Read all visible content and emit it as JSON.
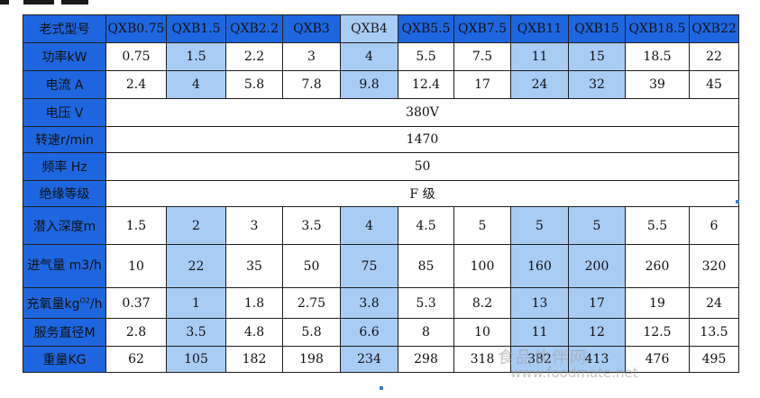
{
  "table": {
    "header": [
      "老式型号",
      "QXB0.75",
      "QXB1.5",
      "QXB2.2",
      "QXB3",
      "QXB4",
      "QXB5.5",
      "QXB7.5",
      "QXB11",
      "QXB15",
      "QXB18.5",
      "QXB22"
    ],
    "rows": [
      {
        "label": "功率kW",
        "values": [
          "0.75",
          "1.5",
          "2.2",
          "3",
          "4",
          "5.5",
          "7.5",
          "11",
          "15",
          "18.5",
          "22"
        ]
      },
      {
        "label": "电流 A",
        "values": [
          "2.4",
          "4",
          "5.8",
          "7.8",
          "9.8",
          "12.4",
          "17",
          "24",
          "32",
          "39",
          "45"
        ]
      },
      {
        "label": "电压 V",
        "merged": "380V"
      },
      {
        "label": "转速r/min",
        "merged": "1470"
      },
      {
        "label": "频率 Hz",
        "merged": "50"
      },
      {
        "label": "绝缘等级",
        "merged": "F 级"
      },
      {
        "label": "潜入深度m",
        "values": [
          "1.5",
          "2",
          "3",
          "3.5",
          "4",
          "4.5",
          "5",
          "5",
          "5",
          "5.5",
          "6"
        ]
      },
      {
        "label": "进气量 m3/h",
        "values": [
          "10",
          "22",
          "35",
          "50",
          "75",
          "85",
          "100",
          "160",
          "200",
          "260",
          "320"
        ]
      },
      {
        "label": "充氧量kg",
        "label_sup": "O2",
        "label_suffix": "/h",
        "values": [
          "0.37",
          "1",
          "1.8",
          "2.75",
          "3.8",
          "5.3",
          "8.2",
          "13",
          "17",
          "19",
          "24"
        ]
      },
      {
        "label": "服务直径M",
        "values": [
          "2.8",
          "3.5",
          "4.8",
          "5.8",
          "6.6",
          "8",
          "10",
          "11",
          "12",
          "12.5",
          "13.5"
        ]
      },
      {
        "label": "重量KG",
        "values": [
          "62",
          "105",
          "182",
          "198",
          "234",
          "298",
          "318",
          "382",
          "413",
          "476",
          "495"
        ]
      }
    ]
  },
  "watermark": {
    "text_cn": "食品伙伴网",
    "text_url": "www.foodmate.net"
  },
  "colors": {
    "label_bg": "#1e66e0",
    "highlight_bg": "#a9ccf5",
    "border": "#1e1e1e",
    "cell_bg": "#ffffff"
  }
}
